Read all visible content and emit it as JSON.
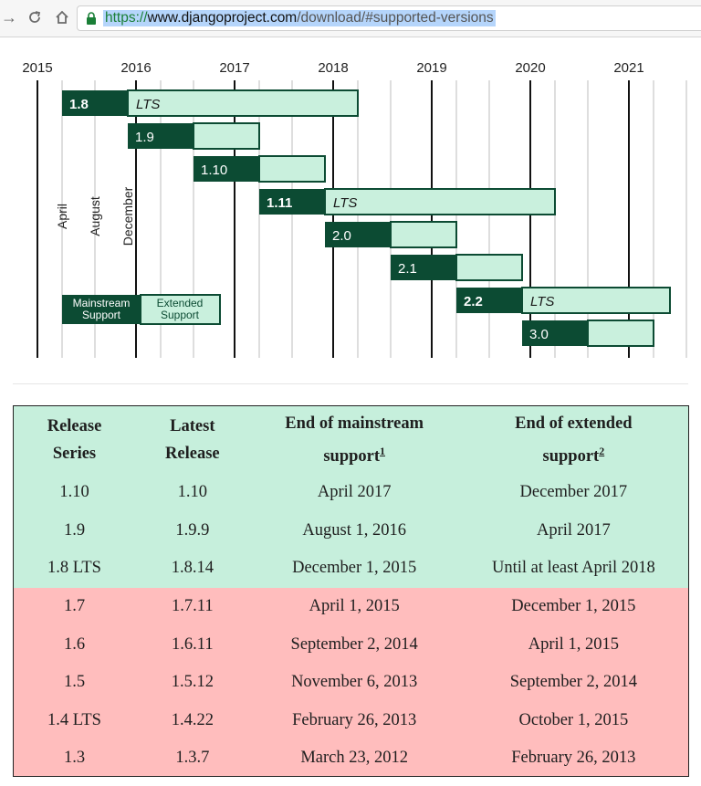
{
  "browser": {
    "url_scheme": "https://",
    "url_host": "www.djangoproject.com",
    "url_path": "/download/#supported-versions",
    "icons": [
      "back-arrow-icon",
      "reload-icon",
      "home-icon",
      "lock-icon"
    ]
  },
  "chart_data": {
    "type": "gantt",
    "year_ticks": [
      "2015",
      "2016",
      "2017",
      "2018",
      "2019",
      "2020",
      "2021"
    ],
    "month_markers": [
      "April",
      "August",
      "December"
    ],
    "legend": {
      "mainstream": "Mainstream Support",
      "extended": "Extended Support"
    },
    "releases": [
      {
        "version": "1.8",
        "lts": "LTS",
        "bold": true,
        "start": "2015-04",
        "mainstream_end": "2015-12",
        "extended_end": "2018-04"
      },
      {
        "version": "1.9",
        "lts": "",
        "bold": false,
        "start": "2015-12",
        "mainstream_end": "2016-08",
        "extended_end": "2017-04"
      },
      {
        "version": "1.10",
        "lts": "",
        "bold": false,
        "start": "2016-08",
        "mainstream_end": "2017-04",
        "extended_end": "2017-12"
      },
      {
        "version": "1.11",
        "lts": "LTS",
        "bold": true,
        "start": "2017-04",
        "mainstream_end": "2017-12",
        "extended_end": "2020-04"
      },
      {
        "version": "2.0",
        "lts": "",
        "bold": false,
        "start": "2017-12",
        "mainstream_end": "2018-08",
        "extended_end": "2019-04"
      },
      {
        "version": "2.1",
        "lts": "",
        "bold": false,
        "start": "2018-08",
        "mainstream_end": "2019-04",
        "extended_end": "2019-12"
      },
      {
        "version": "2.2",
        "lts": "LTS",
        "bold": true,
        "start": "2019-04",
        "mainstream_end": "2019-12",
        "extended_end": "2021-06"
      },
      {
        "version": "3.0",
        "lts": "",
        "bold": false,
        "start": "2019-12",
        "mainstream_end": "2020-08",
        "extended_end": "2021-04"
      }
    ],
    "colors": {
      "mainstream": "#0c4b33",
      "extended": "#c9f0dd",
      "line": "#111111",
      "grid": "#c8c8c8"
    }
  },
  "table": {
    "headers": {
      "series": [
        "Release",
        "Series"
      ],
      "latest": [
        "Latest",
        "Release"
      ],
      "mainstream": [
        "End of mainstream",
        "support"
      ],
      "mainstream_note": "1",
      "extended": [
        "End of extended",
        "support"
      ],
      "extended_note": "2"
    },
    "rows": [
      {
        "series": "1.10",
        "latest": "1.10",
        "mainstream": "April 2017",
        "extended": "December 2017",
        "status": "supported"
      },
      {
        "series": "1.9",
        "latest": "1.9.9",
        "mainstream": "August 1, 2016",
        "extended": "April 2017",
        "status": "supported"
      },
      {
        "series": "1.8 LTS",
        "latest": "1.8.14",
        "mainstream": "December 1, 2015",
        "extended": "Until at least April 2018",
        "status": "supported"
      },
      {
        "series": "1.7",
        "latest": "1.7.11",
        "mainstream": "April 1, 2015",
        "extended": "December 1, 2015",
        "status": "unsupported"
      },
      {
        "series": "1.6",
        "latest": "1.6.11",
        "mainstream": "September 2, 2014",
        "extended": "April 1, 2015",
        "status": "unsupported"
      },
      {
        "series": "1.5",
        "latest": "1.5.12",
        "mainstream": "November 6, 2013",
        "extended": "September 2, 2014",
        "status": "unsupported"
      },
      {
        "series": "1.4 LTS",
        "latest": "1.4.22",
        "mainstream": "February 26, 2013",
        "extended": "October 1, 2015",
        "status": "unsupported"
      },
      {
        "series": "1.3",
        "latest": "1.3.7",
        "mainstream": "March 23, 2012",
        "extended": "February 26, 2013",
        "status": "unsupported"
      }
    ],
    "colors": {
      "supported": "#c6efdc",
      "unsupported": "#ffbdbd"
    }
  }
}
